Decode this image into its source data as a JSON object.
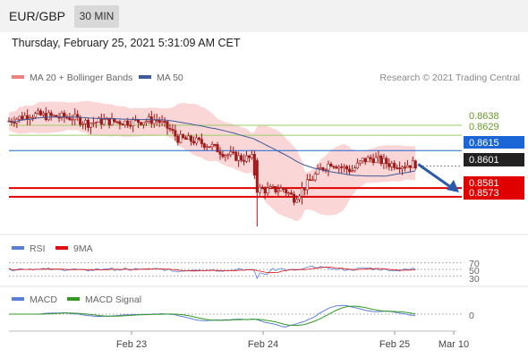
{
  "header": {
    "symbol": "EUR/GBP",
    "timeframe": "30 MIN"
  },
  "timestamp": "Thursday, February 25, 2021 5:31:09 AM CET",
  "main": {
    "legend": [
      {
        "label": "MA 20 + Bollinger Bands",
        "color": "#f08080"
      },
      {
        "label": "MA 50",
        "color": "#3d5a99"
      }
    ],
    "copyright": "Research © 2021 Trading Central"
  },
  "rsi": {
    "legend": [
      {
        "label": "RSI",
        "color": "#5b7fd6"
      },
      {
        "label": "9MA",
        "color": "#dd1111"
      }
    ],
    "levels": [
      "70",
      "50",
      "30"
    ]
  },
  "macd": {
    "legend": [
      {
        "label": "MACD",
        "color": "#5b7fd6"
      },
      {
        "label": "MACD Signal",
        "color": "#339922"
      }
    ],
    "zero_label": "0"
  },
  "colors": {
    "resistance": "#99cc66",
    "pivot": "#1a66d6",
    "support": "#e00000",
    "last": "#222222",
    "candle": "#a01818",
    "band": "#f9c8c8",
    "ma50": "#3d5a99",
    "arrow": "#2a5ba8"
  },
  "chart_data": {
    "type": "candlestick",
    "instrument": "EUR/GBP",
    "interval": "30 MIN",
    "x_ticks": [
      "Feb 23",
      "Feb 24",
      "Feb 25",
      "Mar 10"
    ],
    "y_range": [
      0.8542,
      0.866
    ],
    "levels": [
      {
        "label": "0.8638",
        "value": 0.8638,
        "kind": "resistance"
      },
      {
        "label": "0.8629",
        "value": 0.8629,
        "kind": "resistance"
      },
      {
        "label": "0.8615",
        "value": 0.8615,
        "kind": "pivot"
      },
      {
        "label": "0.8601",
        "value": 0.8601,
        "kind": "last"
      },
      {
        "label": "0.8581",
        "value": 0.8581,
        "kind": "support"
      },
      {
        "label": "0.8573",
        "value": 0.8573,
        "kind": "support"
      }
    ],
    "forecast": "down",
    "close_path": [
      [
        0,
        0.8642
      ],
      [
        8,
        0.8648
      ],
      [
        16,
        0.8646
      ],
      [
        24,
        0.8645
      ],
      [
        30,
        0.864
      ],
      [
        36,
        0.8642
      ],
      [
        44,
        0.8641
      ],
      [
        50,
        0.8642
      ],
      [
        56,
        0.8643
      ],
      [
        61,
        0.8634
      ],
      [
        64,
        0.8626
      ],
      [
        70,
        0.8624
      ],
      [
        76,
        0.862
      ],
      [
        82,
        0.8612
      ],
      [
        88,
        0.8608
      ],
      [
        92,
        0.8608
      ],
      [
        94,
        0.858
      ],
      [
        98,
        0.8579
      ],
      [
        104,
        0.858
      ],
      [
        108,
        0.8572
      ],
      [
        112,
        0.8582
      ],
      [
        118,
        0.8598
      ],
      [
        122,
        0.8604
      ],
      [
        126,
        0.86
      ],
      [
        130,
        0.8597
      ],
      [
        134,
        0.8606
      ],
      [
        138,
        0.8608
      ],
      [
        144,
        0.8603
      ],
      [
        150,
        0.8602
      ],
      [
        154,
        0.8603
      ]
    ]
  }
}
